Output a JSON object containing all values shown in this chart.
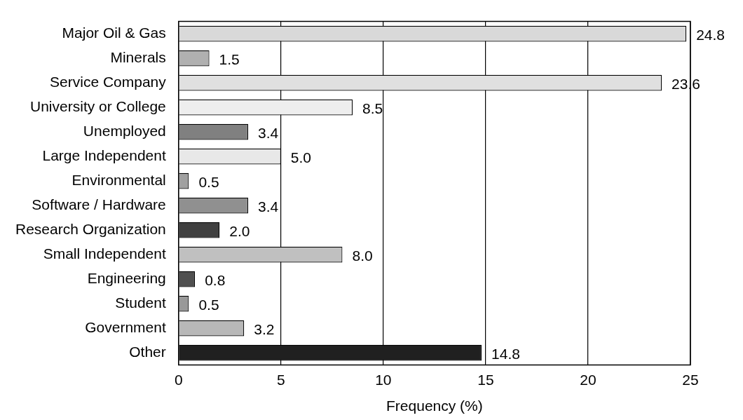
{
  "chart_data": {
    "type": "bar",
    "orientation": "horizontal",
    "xlabel": "Frequency (%)",
    "categories": [
      "Major Oil & Gas",
      "Minerals",
      "Service Company",
      "University or College",
      "Unemployed",
      "Large Independent",
      "Environmental",
      "Software / Hardware",
      "Research Organization",
      "Small Independent",
      "Engineering",
      "Student",
      "Government",
      "Other"
    ],
    "values": [
      24.8,
      1.5,
      23.6,
      8.5,
      3.4,
      5.0,
      0.5,
      3.4,
      2.0,
      8.0,
      0.8,
      0.5,
      3.2,
      14.8
    ],
    "value_labels": [
      "24.8",
      "1.5",
      "23.6",
      "8.5",
      "3.4",
      "5.0",
      "0.5",
      "3.4",
      "2.0",
      "8.0",
      "0.8",
      "0.5",
      "3.2",
      "14.8"
    ],
    "colors": [
      "#d9d9d9",
      "#b0b0b0",
      "#e0e0e0",
      "#eeeeee",
      "#808080",
      "#e8e8e8",
      "#a0a0a0",
      "#909090",
      "#404040",
      "#c0c0c0",
      "#505050",
      "#999999",
      "#b8b8b8",
      "#202020"
    ],
    "xlim": [
      0,
      25
    ],
    "xticks": [
      0,
      5,
      10,
      15,
      20,
      25
    ],
    "grid": "x",
    "legend": false
  }
}
